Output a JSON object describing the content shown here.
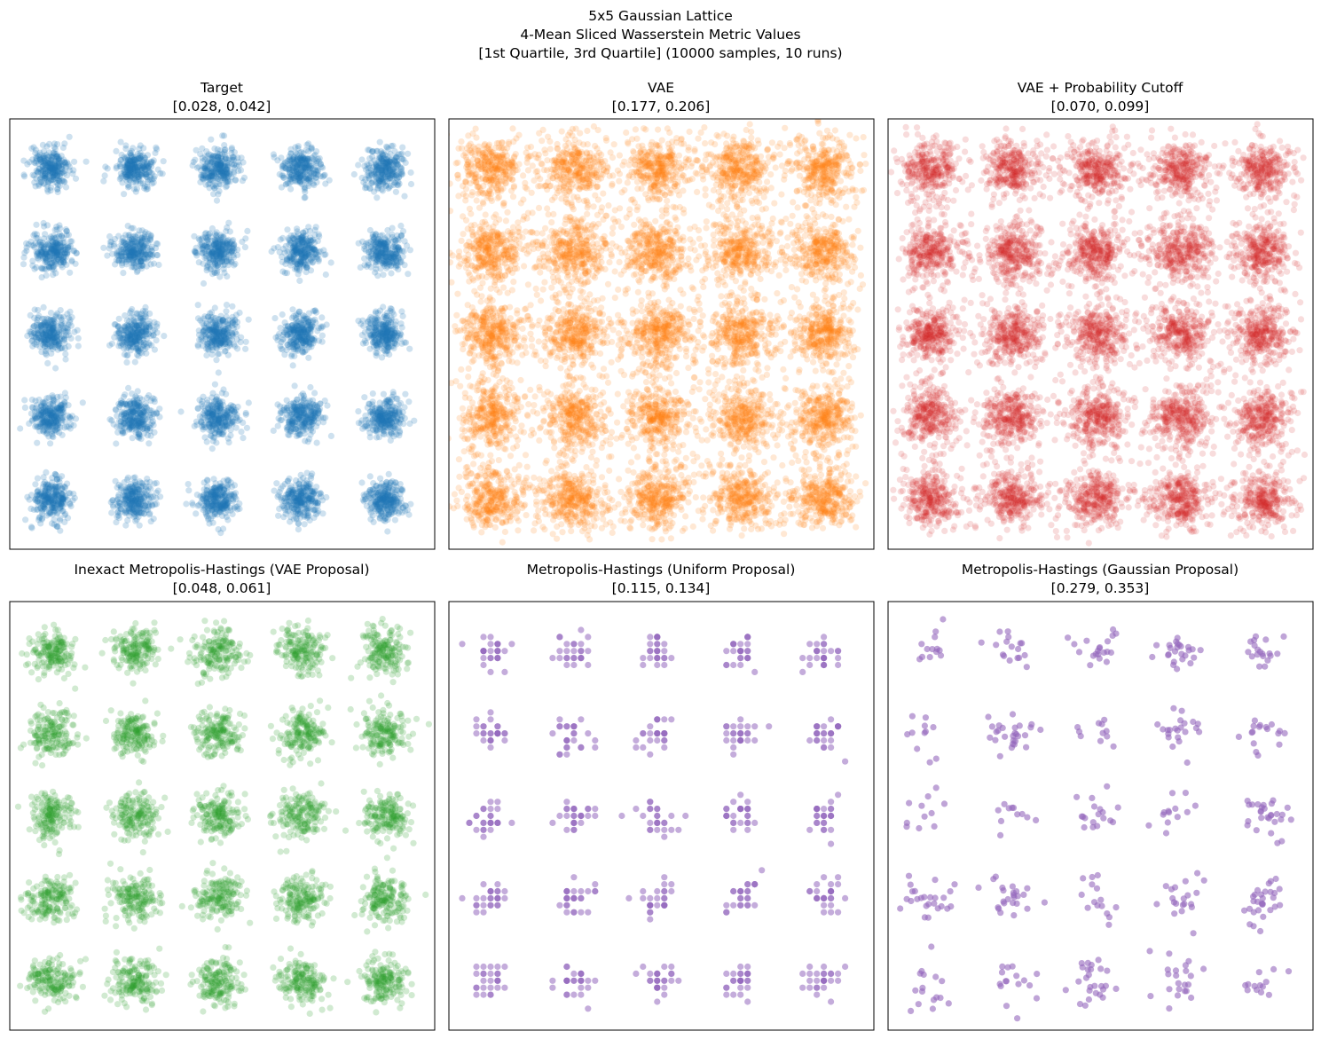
{
  "figure": {
    "title_lines": [
      "5x5 Gaussian Lattice",
      "4-Mean Sliced Wasserstein Metric Values",
      "[1st Quartile, 3rd Quartile] (10000 samples, 10 runs)"
    ]
  },
  "chart_data": [
    {
      "type": "scatter",
      "title": "Target",
      "subtitle": "[0.028, 0.042]",
      "color": "#1f77b4",
      "style": "gaussian",
      "centers_x": [
        -2,
        -1,
        0,
        1,
        2
      ],
      "centers_y": [
        -2,
        -1,
        0,
        1,
        2
      ],
      "cluster_std": 0.12,
      "background_fraction": 0,
      "points_per_cluster": 260,
      "point_alpha": 0.22,
      "xlim": [
        -2.5,
        2.6
      ],
      "ylim": [
        -2.6,
        2.6
      ],
      "ticks_visible": false
    },
    {
      "type": "scatter",
      "title": "VAE",
      "subtitle": "[0.177, 0.206]",
      "color": "#ff7f0e",
      "style": "gaussian",
      "centers_x": [
        -2,
        -1,
        0,
        1,
        2
      ],
      "centers_y": [
        -2,
        -1,
        0,
        1,
        2
      ],
      "cluster_std": 0.17,
      "background_fraction": 0.4,
      "points_per_cluster": 260,
      "point_alpha": 0.18,
      "xlim": [
        -2.5,
        2.6
      ],
      "ylim": [
        -2.6,
        2.6
      ],
      "ticks_visible": false
    },
    {
      "type": "scatter",
      "title": "VAE + Probability Cutoff",
      "subtitle": "[0.070, 0.099]",
      "color": "#d62728",
      "style": "gaussian",
      "centers_x": [
        -2,
        -1,
        0,
        1,
        2
      ],
      "centers_y": [
        -2,
        -1,
        0,
        1,
        2
      ],
      "cluster_std": 0.16,
      "background_fraction": 0.28,
      "points_per_cluster": 260,
      "point_alpha": 0.16,
      "xlim": [
        -2.5,
        2.6
      ],
      "ylim": [
        -2.6,
        2.6
      ],
      "ticks_visible": false
    },
    {
      "type": "scatter",
      "title": "Inexact Metropolis-Hastings (VAE Proposal)",
      "subtitle": "[0.048, 0.061]",
      "color": "#2ca02c",
      "style": "gaussian",
      "centers_x": [
        -2,
        -1,
        0,
        1,
        2
      ],
      "centers_y": [
        -2,
        -1,
        0,
        1,
        2
      ],
      "cluster_std": 0.14,
      "background_fraction": 0,
      "points_per_cluster": 170,
      "point_alpha": 0.22,
      "xlim": [
        -2.5,
        2.6
      ],
      "ylim": [
        -2.6,
        2.6
      ],
      "ticks_visible": false
    },
    {
      "type": "scatter",
      "title": "Metropolis-Hastings (Uniform Proposal)",
      "subtitle": "[0.115, 0.134]",
      "color": "#9467bd",
      "style": "grid",
      "centers_x": [
        -2,
        -1,
        0,
        1,
        2
      ],
      "centers_y": [
        -2,
        -1,
        0,
        1,
        2
      ],
      "cluster_std": 0.11,
      "grid_step": 0.085,
      "background_fraction": 0,
      "points_per_cluster": 26,
      "point_alpha": 0.55,
      "xlim": [
        -2.5,
        2.6
      ],
      "ylim": [
        -2.6,
        2.6
      ],
      "ticks_visible": false
    },
    {
      "type": "scatter",
      "title": "Metropolis-Hastings (Gaussian Proposal)",
      "subtitle": "[0.279, 0.353]",
      "color": "#9467bd",
      "style": "sparse",
      "centers_x": [
        -2,
        -1,
        0,
        1,
        2
      ],
      "centers_y": [
        -2,
        -1,
        0,
        1,
        2
      ],
      "cluster_std": 0.14,
      "background_fraction": 0,
      "points_per_cluster": 20,
      "point_alpha": 0.6,
      "xlim": [
        -2.5,
        2.6
      ],
      "ylim": [
        -2.6,
        2.6
      ],
      "ticks_visible": false
    }
  ]
}
